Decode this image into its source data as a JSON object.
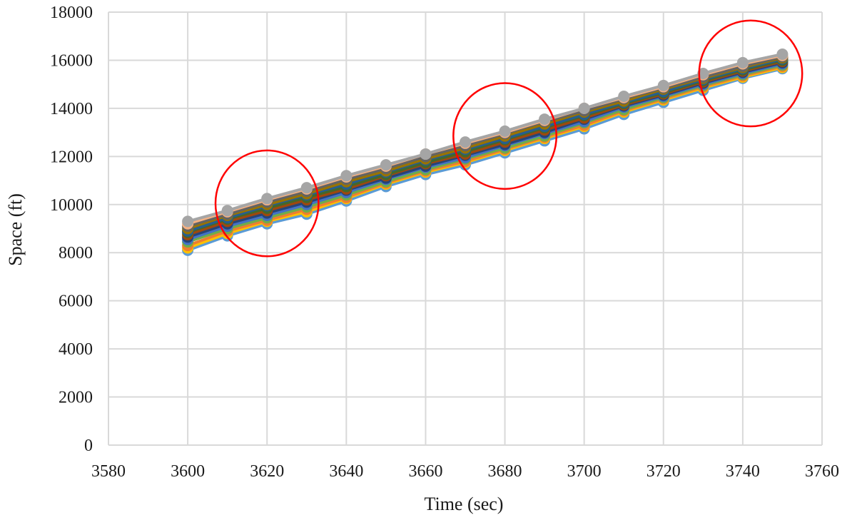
{
  "chart_data": {
    "type": "line",
    "title": "",
    "xlabel": "Time (sec)",
    "ylabel": "Space (ft)",
    "xlim": [
      3580,
      3760
    ],
    "ylim": [
      0,
      18000
    ],
    "xticks": [
      3580,
      3600,
      3620,
      3640,
      3660,
      3680,
      3700,
      3720,
      3740,
      3760
    ],
    "yticks": [
      0,
      2000,
      4000,
      6000,
      8000,
      10000,
      12000,
      14000,
      16000,
      18000
    ],
    "grid": true,
    "legend": "none",
    "x": [
      3600,
      3610,
      3620,
      3630,
      3640,
      3650,
      3660,
      3670,
      3680,
      3690,
      3700,
      3710,
      3720,
      3730,
      3740,
      3750
    ],
    "series": [
      {
        "color": "#5b9bd5",
        "values": [
          8100,
          8700,
          9200,
          9600,
          10150,
          10750,
          11250,
          11650,
          12150,
          12650,
          13150,
          13750,
          14250,
          14750,
          15250,
          15650
        ]
      },
      {
        "color": "#ffc000",
        "values": [
          8200,
          8800,
          9300,
          9700,
          10250,
          10850,
          11350,
          11750,
          12250,
          12750,
          13250,
          13850,
          14350,
          14850,
          15300,
          15700
        ]
      },
      {
        "color": "#ed7d31",
        "values": [
          8300,
          8900,
          9350,
          9800,
          10300,
          10900,
          11400,
          11800,
          12300,
          12800,
          13300,
          13900,
          14400,
          14900,
          15350,
          15750
        ]
      },
      {
        "color": "#70ad47",
        "values": [
          8450,
          9000,
          9450,
          9900,
          10400,
          10950,
          11450,
          11900,
          12350,
          12850,
          13400,
          13950,
          14450,
          14950,
          15400,
          15800
        ]
      },
      {
        "color": "#4472c4",
        "values": [
          8550,
          9100,
          9550,
          10000,
          10500,
          11050,
          11550,
          11950,
          12450,
          12950,
          13450,
          14050,
          14500,
          15000,
          15450,
          15850
        ]
      },
      {
        "color": "#264478",
        "values": [
          8650,
          9200,
          9650,
          10100,
          10600,
          11100,
          11600,
          12050,
          12500,
          13000,
          13550,
          14100,
          14550,
          15050,
          15500,
          15900
        ]
      },
      {
        "color": "#9e480e",
        "values": [
          8750,
          9300,
          9750,
          10200,
          10650,
          11200,
          11700,
          12100,
          12600,
          13100,
          13600,
          14150,
          14600,
          15100,
          15550,
          15950
        ]
      },
      {
        "color": "#43682b",
        "values": [
          8850,
          9400,
          9850,
          10300,
          10750,
          11250,
          11750,
          12200,
          12700,
          13200,
          13700,
          14200,
          14650,
          15150,
          15600,
          16000
        ]
      },
      {
        "color": "#255e91",
        "values": [
          8900,
          9450,
          9950,
          10400,
          10850,
          11350,
          11850,
          12300,
          12750,
          13250,
          13750,
          14250,
          14700,
          15200,
          15650,
          16050
        ]
      },
      {
        "color": "#997300",
        "values": [
          9000,
          9550,
          10000,
          10450,
          10950,
          11400,
          11900,
          12350,
          12850,
          13350,
          13850,
          14300,
          14800,
          15250,
          15700,
          16100
        ]
      },
      {
        "color": "#636363",
        "values": [
          9100,
          9600,
          10100,
          10550,
          11050,
          11500,
          12000,
          12450,
          12950,
          13450,
          13900,
          14400,
          14850,
          15300,
          15750,
          16150
        ]
      },
      {
        "color": "#f4b183",
        "values": [
          9200,
          9700,
          10200,
          10650,
          11150,
          11600,
          12100,
          12550,
          13000,
          13500,
          14000,
          14450,
          14900,
          15400,
          15850,
          16200
        ]
      },
      {
        "color": "#a5a5a5",
        "values": [
          9300,
          9750,
          10250,
          10700,
          11200,
          11650,
          12100,
          12600,
          13050,
          13550,
          14000,
          14500,
          14950,
          15450,
          15900,
          16250
        ]
      }
    ],
    "annotations": [
      {
        "shape": "circle",
        "color": "#ff0000",
        "center": [
          3620,
          10050
        ],
        "radius_x": 13,
        "radius_y": 2200
      },
      {
        "shape": "circle",
        "color": "#ff0000",
        "center": [
          3680,
          12850
        ],
        "radius_x": 13,
        "radius_y": 2200
      },
      {
        "shape": "circle",
        "color": "#ff0000",
        "center": [
          3742,
          15450
        ],
        "radius_x": 13,
        "radius_y": 2200
      }
    ]
  }
}
